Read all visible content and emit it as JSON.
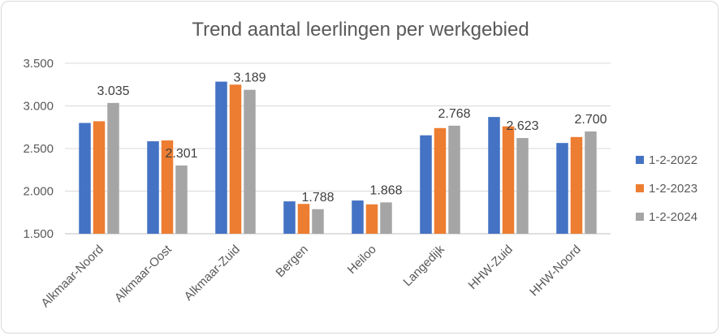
{
  "chart_data": {
    "type": "bar",
    "title": "Trend aantal leerlingen per werkgebied",
    "xlabel": "",
    "ylabel": "",
    "ylim": [
      1500,
      3500
    ],
    "yticks": [
      1500,
      2000,
      2500,
      3000,
      3500
    ],
    "ytick_labels": [
      "1.500",
      "2.000",
      "2.500",
      "3.000",
      "3.500"
    ],
    "grid": true,
    "legend_position": "right",
    "categories": [
      "Alkmaar-Noord",
      "Alkmaar-Oost",
      "Alkmaar-Zuid",
      "Bergen",
      "Heiloo",
      "Langedijk",
      "HHW-Zuid",
      "HHW-Noord"
    ],
    "series": [
      {
        "name": "1-2-2022",
        "color": "#4472c4",
        "values": [
          2800,
          2585,
          3285,
          1880,
          1890,
          2655,
          2870,
          2565
        ]
      },
      {
        "name": "1-2-2023",
        "color": "#ed7d31",
        "values": [
          2820,
          2595,
          3250,
          1850,
          1845,
          2740,
          2760,
          2635
        ]
      },
      {
        "name": "1-2-2024",
        "color": "#a5a5a5",
        "values": [
          3035,
          2301,
          3189,
          1788,
          1868,
          2768,
          2623,
          2700
        ]
      }
    ],
    "data_labels": {
      "series_index": 2,
      "labels": [
        "3.035",
        "2.301",
        "3.189",
        "1.788",
        "1.868",
        "2.768",
        "2.623",
        "2.700"
      ]
    }
  }
}
